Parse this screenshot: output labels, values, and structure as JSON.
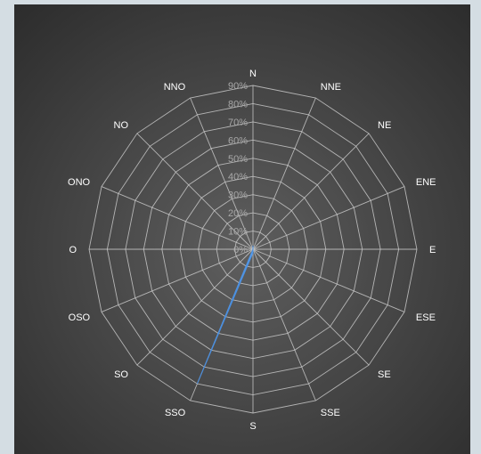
{
  "chart_data": {
    "type": "radar-filled",
    "title": "",
    "directions": [
      "N",
      "NNE",
      "NE",
      "ENE",
      "E",
      "ESE",
      "SE",
      "SSE",
      "S",
      "SSO",
      "SO",
      "OSO",
      "O",
      "ONO",
      "NO",
      "NNO"
    ],
    "radial_ticks": [
      "0%",
      "10%",
      "20%",
      "30%",
      "40%",
      "50%",
      "60%",
      "70%",
      "80%",
      "90%"
    ],
    "rmax": 90,
    "series": [
      {
        "values": [
          2,
          0,
          0,
          0,
          0,
          0,
          0,
          0,
          2,
          80,
          0,
          0,
          0,
          0,
          0,
          0
        ],
        "color": "#4a8fe0"
      }
    ],
    "grid": true,
    "grid_color": "#c8c8c8",
    "background": "#3a3a3a"
  }
}
